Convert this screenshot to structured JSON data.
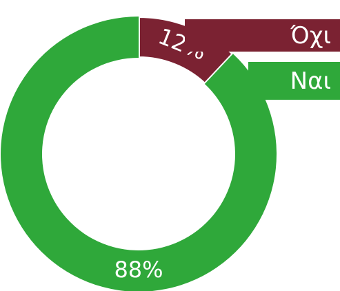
{
  "chart_data": {
    "type": "donut",
    "categories": [
      "Όχι",
      "Ναι"
    ],
    "values": [
      12,
      88
    ],
    "value_labels": [
      "12%",
      "88%"
    ],
    "colors": [
      "#7b2232",
      "#2fa83a"
    ],
    "legend": "top-right"
  }
}
